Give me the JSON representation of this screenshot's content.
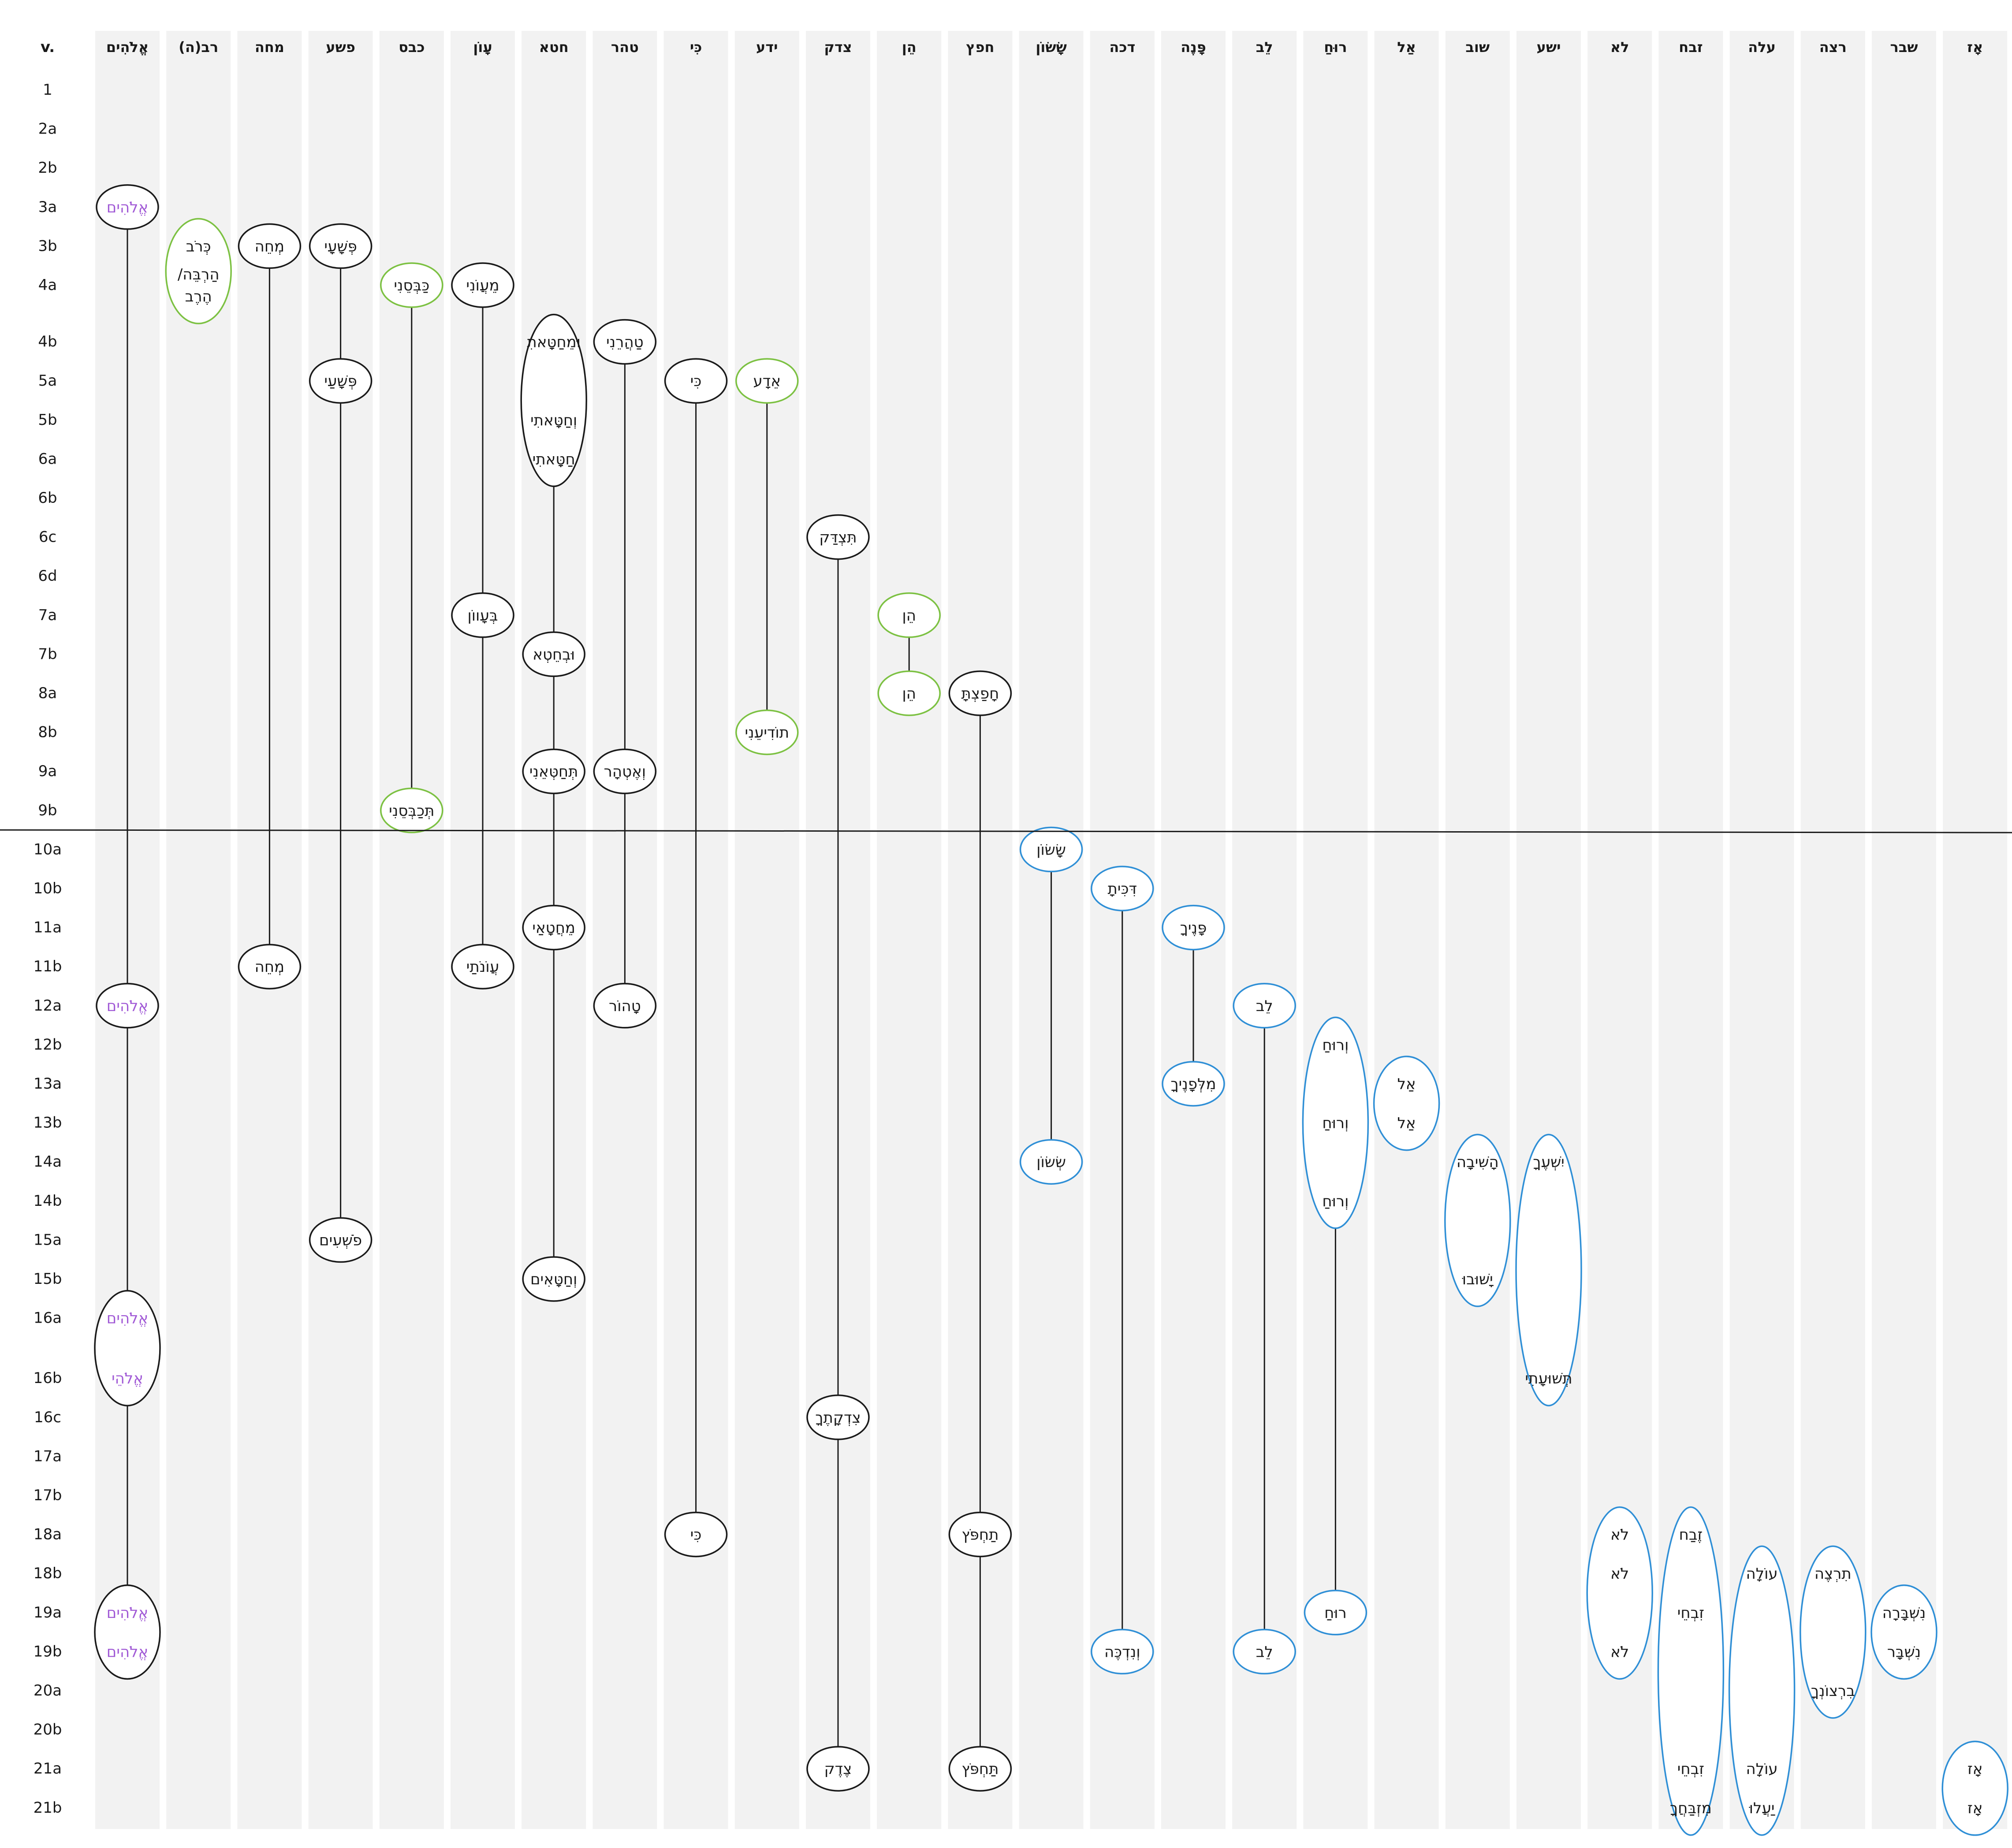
{
  "header_label": "v.",
  "colors": {
    "black": "#1a1a1a",
    "green": "#7cc142",
    "blue": "#2f8fd6",
    "purple": "#a15ad6",
    "column_band": "#f2f2f2"
  },
  "columns": [
    {
      "id": "elohim",
      "label": "אֱלֹהִים"
    },
    {
      "id": "rab",
      "label": "רב(ה)"
    },
    {
      "id": "mhh",
      "label": "מחה"
    },
    {
      "id": "psh",
      "label": "פשע"
    },
    {
      "id": "kbs",
      "label": "כבס"
    },
    {
      "id": "awon",
      "label": "עָוֹן"
    },
    {
      "id": "hata",
      "label": "חטא"
    },
    {
      "id": "thr",
      "label": "טהר"
    },
    {
      "id": "ki",
      "label": "כִּי"
    },
    {
      "id": "yada",
      "label": "ידע"
    },
    {
      "id": "tsdq",
      "label": "צדק"
    },
    {
      "id": "hen",
      "label": "הֵן"
    },
    {
      "id": "hps",
      "label": "חפץ"
    },
    {
      "id": "sason",
      "label": "שָׂשׂוֹן"
    },
    {
      "id": "dkh",
      "label": "דכה"
    },
    {
      "id": "panim",
      "label": "פָּנֶה"
    },
    {
      "id": "lev",
      "label": "לֵב"
    },
    {
      "id": "ruah",
      "label": "רוּחַ"
    },
    {
      "id": "al",
      "label": "אַל"
    },
    {
      "id": "shuv",
      "label": "שוב"
    },
    {
      "id": "ysha",
      "label": "ישע"
    },
    {
      "id": "lo",
      "label": "לא"
    },
    {
      "id": "zbh",
      "label": "זבח"
    },
    {
      "id": "alh",
      "label": "עלה"
    },
    {
      "id": "rsh",
      "label": "רצה"
    },
    {
      "id": "shbr",
      "label": "שבר"
    },
    {
      "id": "az",
      "label": "אָז"
    }
  ],
  "rows": [
    "1",
    "2a",
    "2b",
    "3a",
    "3b",
    "4a",
    "4b",
    "5a",
    "5b",
    "6a",
    "6b",
    "6c",
    "6d",
    "7a",
    "7b",
    "8a",
    "8b",
    "9a",
    "9b",
    "10a",
    "10b",
    "11a",
    "11b",
    "12a",
    "12b",
    "13a",
    "13b",
    "14a",
    "14b",
    "15a",
    "15b",
    "16a",
    "16b",
    "16c",
    "17a",
    "17b",
    "18a",
    "18b",
    "19a",
    "19b",
    "20a",
    "20b",
    "21a",
    "21b"
  ],
  "divider_after_row": "9b",
  "groups": [
    {
      "col": "elohim",
      "color": "black",
      "text_color": "purple",
      "words": [
        {
          "row": "3a",
          "text": "אֱלֹהִים"
        }
      ]
    },
    {
      "col": "elohim",
      "color": "black",
      "text_color": "purple",
      "words": [
        {
          "row": "12a",
          "text": "אֱלֹהִים"
        }
      ]
    },
    {
      "col": "elohim",
      "color": "black",
      "text_color": "purple",
      "words": [
        {
          "row": "16a",
          "text": "אֱלֹהִים"
        },
        {
          "row": "16b",
          "text": "אֱלֹהֵי"
        }
      ]
    },
    {
      "col": "elohim",
      "color": "black",
      "text_color": "purple",
      "words": [
        {
          "row": "19a",
          "text": "אֱלֹהִים"
        },
        {
          "row": "19b",
          "text": "אֱלֹהִים"
        }
      ]
    },
    {
      "col": "rab",
      "color": "green",
      "words": [
        {
          "row": "3b",
          "text": "כְּרֹב"
        },
        {
          "row": "4a",
          "text": "הַרְבֵּה/"
        },
        {
          "row": "4a",
          "text": "הֶרֶב"
        }
      ]
    },
    {
      "col": "mhh",
      "color": "black",
      "words": [
        {
          "row": "3b",
          "text": "מְחֵה"
        }
      ]
    },
    {
      "col": "mhh",
      "color": "black",
      "words": [
        {
          "row": "11b",
          "text": "מְחֵה"
        }
      ]
    },
    {
      "col": "psh",
      "color": "black",
      "words": [
        {
          "row": "3b",
          "text": "פְּשָׁעָי"
        }
      ]
    },
    {
      "col": "psh",
      "color": "black",
      "words": [
        {
          "row": "5a",
          "text": "פְּשָׁעַי"
        }
      ]
    },
    {
      "col": "psh",
      "color": "black",
      "words": [
        {
          "row": "15a",
          "text": "פֹשְׁעִים"
        }
      ]
    },
    {
      "col": "kbs",
      "color": "green",
      "words": [
        {
          "row": "4a",
          "text": "כַּבְּסֵנִי"
        }
      ]
    },
    {
      "col": "kbs",
      "color": "green",
      "words": [
        {
          "row": "9b",
          "text": "תְּכַבְּסֵנִי"
        }
      ]
    },
    {
      "col": "awon",
      "color": "black",
      "words": [
        {
          "row": "4a",
          "text": "מֵעֲוֹנִי"
        }
      ]
    },
    {
      "col": "awon",
      "color": "black",
      "words": [
        {
          "row": "7a",
          "text": "בְּעָווֹן"
        }
      ]
    },
    {
      "col": "awon",
      "color": "black",
      "words": [
        {
          "row": "11b",
          "text": "עֲוֹנֹתַי"
        }
      ]
    },
    {
      "col": "hata",
      "color": "black",
      "words": [
        {
          "row": "4b",
          "text": "וּמֵחַטָּאתִ"
        },
        {
          "row": "5b",
          "text": "וְחַטָּאתִי"
        },
        {
          "row": "6a",
          "text": "חַטָּאתִי"
        }
      ]
    },
    {
      "col": "hata",
      "color": "black",
      "words": [
        {
          "row": "7b",
          "text": "וּבְחֵטְא"
        }
      ]
    },
    {
      "col": "hata",
      "color": "black",
      "words": [
        {
          "row": "9a",
          "text": "תְּחַטְּאֵנִי"
        }
      ]
    },
    {
      "col": "hata",
      "color": "black",
      "words": [
        {
          "row": "11a",
          "text": "מֵחֲטָאַי"
        }
      ]
    },
    {
      "col": "hata",
      "color": "black",
      "words": [
        {
          "row": "15b",
          "text": "וְחַטָּאִים"
        }
      ]
    },
    {
      "col": "thr",
      "color": "black",
      "words": [
        {
          "row": "4b",
          "text": "טַהֲרֵנִי"
        }
      ]
    },
    {
      "col": "thr",
      "color": "black",
      "words": [
        {
          "row": "9a",
          "text": "וְאֶטְהָר"
        }
      ]
    },
    {
      "col": "thr",
      "color": "black",
      "words": [
        {
          "row": "12a",
          "text": "טָהוֹר"
        }
      ]
    },
    {
      "col": "ki",
      "color": "black",
      "words": [
        {
          "row": "5a",
          "text": "כִּי"
        }
      ]
    },
    {
      "col": "ki",
      "color": "black",
      "words": [
        {
          "row": "18a",
          "text": "כִּי"
        }
      ]
    },
    {
      "col": "yada",
      "color": "green",
      "words": [
        {
          "row": "5a",
          "text": "אֵדָע"
        }
      ]
    },
    {
      "col": "yada",
      "color": "green",
      "words": [
        {
          "row": "8b",
          "text": "תוֹדִיעֵנִי"
        }
      ]
    },
    {
      "col": "tsdq",
      "color": "black",
      "words": [
        {
          "row": "6c",
          "text": "תִּצְדַּק"
        }
      ]
    },
    {
      "col": "tsdq",
      "color": "black",
      "words": [
        {
          "row": "16c",
          "text": "צִדְקָתֶךָ"
        }
      ]
    },
    {
      "col": "tsdq",
      "color": "black",
      "words": [
        {
          "row": "21a",
          "text": "צֶדֶק"
        }
      ]
    },
    {
      "col": "hen",
      "color": "green",
      "words": [
        {
          "row": "7a",
          "text": "הֵן"
        }
      ]
    },
    {
      "col": "hen",
      "color": "green",
      "words": [
        {
          "row": "8a",
          "text": "הֵן"
        }
      ]
    },
    {
      "col": "hps",
      "color": "black",
      "words": [
        {
          "row": "8a",
          "text": "חָפַצְתָּ"
        }
      ]
    },
    {
      "col": "hps",
      "color": "black",
      "words": [
        {
          "row": "18a",
          "text": "תַחְפֹּץ"
        }
      ]
    },
    {
      "col": "hps",
      "color": "black",
      "words": [
        {
          "row": "21a",
          "text": "תַּחְפֹּץ"
        }
      ]
    },
    {
      "col": "sason",
      "color": "blue",
      "words": [
        {
          "row": "10a",
          "text": "שָׂשׂוֹן"
        }
      ]
    },
    {
      "col": "sason",
      "color": "blue",
      "words": [
        {
          "row": "14a",
          "text": "שְׂשׂוֹן"
        }
      ]
    },
    {
      "col": "dkh",
      "color": "blue",
      "words": [
        {
          "row": "10b",
          "text": "דִּכִּיתָ"
        }
      ]
    },
    {
      "col": "dkh",
      "color": "blue",
      "words": [
        {
          "row": "19b",
          "text": "וְנִדְכֶּה"
        }
      ]
    },
    {
      "col": "panim",
      "color": "blue",
      "words": [
        {
          "row": "11a",
          "text": "פָּנֶיךָ"
        }
      ]
    },
    {
      "col": "panim",
      "color": "blue",
      "words": [
        {
          "row": "13a",
          "text": "מִלְּפָנֶיךָ"
        }
      ]
    },
    {
      "col": "lev",
      "color": "blue",
      "words": [
        {
          "row": "12a",
          "text": "לֵב"
        }
      ]
    },
    {
      "col": "lev",
      "color": "blue",
      "words": [
        {
          "row": "19b",
          "text": "לֵב"
        }
      ]
    },
    {
      "col": "ruah",
      "color": "blue",
      "words": [
        {
          "row": "12b",
          "text": "וְרוּחַ"
        },
        {
          "row": "13b",
          "text": "וְרוּחַ"
        },
        {
          "row": "14b",
          "text": "וְרוּחַ"
        }
      ]
    },
    {
      "col": "ruah",
      "color": "blue",
      "words": [
        {
          "row": "19a",
          "text": "רוּחַ"
        }
      ]
    },
    {
      "col": "al",
      "color": "blue",
      "words": [
        {
          "row": "13a",
          "text": "אַל"
        },
        {
          "row": "13b",
          "text": "אַל"
        }
      ]
    },
    {
      "col": "shuv",
      "color": "blue",
      "words": [
        {
          "row": "14a",
          "text": "הָשִׁיבָה"
        },
        {
          "row": "15b",
          "text": "יָשׁוּבוּ"
        }
      ]
    },
    {
      "col": "ysha",
      "color": "blue",
      "words": [
        {
          "row": "14a",
          "text": "יִשְׁעֶךָ"
        },
        {
          "row": "16b",
          "text": "תְּשׁוּעָתִי"
        }
      ]
    },
    {
      "col": "lo",
      "color": "blue",
      "words": [
        {
          "row": "18a",
          "text": "לֹא"
        },
        {
          "row": "18b",
          "text": "לֹא"
        },
        {
          "row": "19b",
          "text": "לֹא"
        }
      ]
    },
    {
      "col": "zbh",
      "color": "blue",
      "words": [
        {
          "row": "18a",
          "text": "זֶבַח"
        },
        {
          "row": "19a",
          "text": "זִבְחֵי"
        },
        {
          "row": "21a",
          "text": "זִבְחֵי"
        },
        {
          "row": "21b",
          "text": "מִזְבַּחֲךָ"
        }
      ]
    },
    {
      "col": "alh",
      "color": "blue",
      "words": [
        {
          "row": "18b",
          "text": "עוֹלָה"
        },
        {
          "row": "21a",
          "text": "עוֹלָה"
        },
        {
          "row": "21b",
          "text": "יַעֲלוּ"
        }
      ]
    },
    {
      "col": "rsh",
      "color": "blue",
      "words": [
        {
          "row": "18b",
          "text": "תִרְצֶה"
        },
        {
          "row": "20a",
          "text": "בִרְצוֹנְךָ"
        }
      ]
    },
    {
      "col": "shbr",
      "color": "blue",
      "words": [
        {
          "row": "19a",
          "text": "נִשְׁבָּרָה"
        },
        {
          "row": "19b",
          "text": "נִשְׁבָּר"
        }
      ]
    },
    {
      "col": "az",
      "color": "blue",
      "words": [
        {
          "row": "21a",
          "text": "אָז"
        },
        {
          "row": "21b",
          "text": "אָז"
        }
      ]
    }
  ],
  "links": [
    {
      "col": "elohim",
      "from": "3a",
      "to": "12a"
    },
    {
      "col": "elohim",
      "from": "12a",
      "to": "16a"
    },
    {
      "col": "elohim",
      "from": "16b",
      "to": "19a"
    },
    {
      "col": "mhh",
      "from": "3b",
      "to": "11b"
    },
    {
      "col": "psh",
      "from": "3b",
      "to": "5a"
    },
    {
      "col": "psh",
      "from": "5a",
      "to": "15a"
    },
    {
      "col": "kbs",
      "from": "4a",
      "to": "9b"
    },
    {
      "col": "awon",
      "from": "4a",
      "to": "7a"
    },
    {
      "col": "awon",
      "from": "7a",
      "to": "11b"
    },
    {
      "col": "hata",
      "from": "6a",
      "to": "7b"
    },
    {
      "col": "hata",
      "from": "7b",
      "to": "9a"
    },
    {
      "col": "hata",
      "from": "9a",
      "to": "11a"
    },
    {
      "col": "hata",
      "from": "11a",
      "to": "15b"
    },
    {
      "col": "thr",
      "from": "4b",
      "to": "9a"
    },
    {
      "col": "thr",
      "from": "9a",
      "to": "12a"
    },
    {
      "col": "ki",
      "from": "5a",
      "to": "18a"
    },
    {
      "col": "yada",
      "from": "5a",
      "to": "8b"
    },
    {
      "col": "tsdq",
      "from": "6c",
      "to": "16c"
    },
    {
      "col": "tsdq",
      "from": "16c",
      "to": "21a"
    },
    {
      "col": "hen",
      "from": "7a",
      "to": "8a"
    },
    {
      "col": "hps",
      "from": "8a",
      "to": "18a"
    },
    {
      "col": "hps",
      "from": "18a",
      "to": "21a"
    },
    {
      "col": "sason",
      "from": "10a",
      "to": "14a"
    },
    {
      "col": "dkh",
      "from": "10b",
      "to": "19b"
    },
    {
      "col": "panim",
      "from": "11a",
      "to": "13a"
    },
    {
      "col": "lev",
      "from": "12a",
      "to": "19b"
    },
    {
      "col": "ruah",
      "from": "14b",
      "to": "19a"
    }
  ]
}
